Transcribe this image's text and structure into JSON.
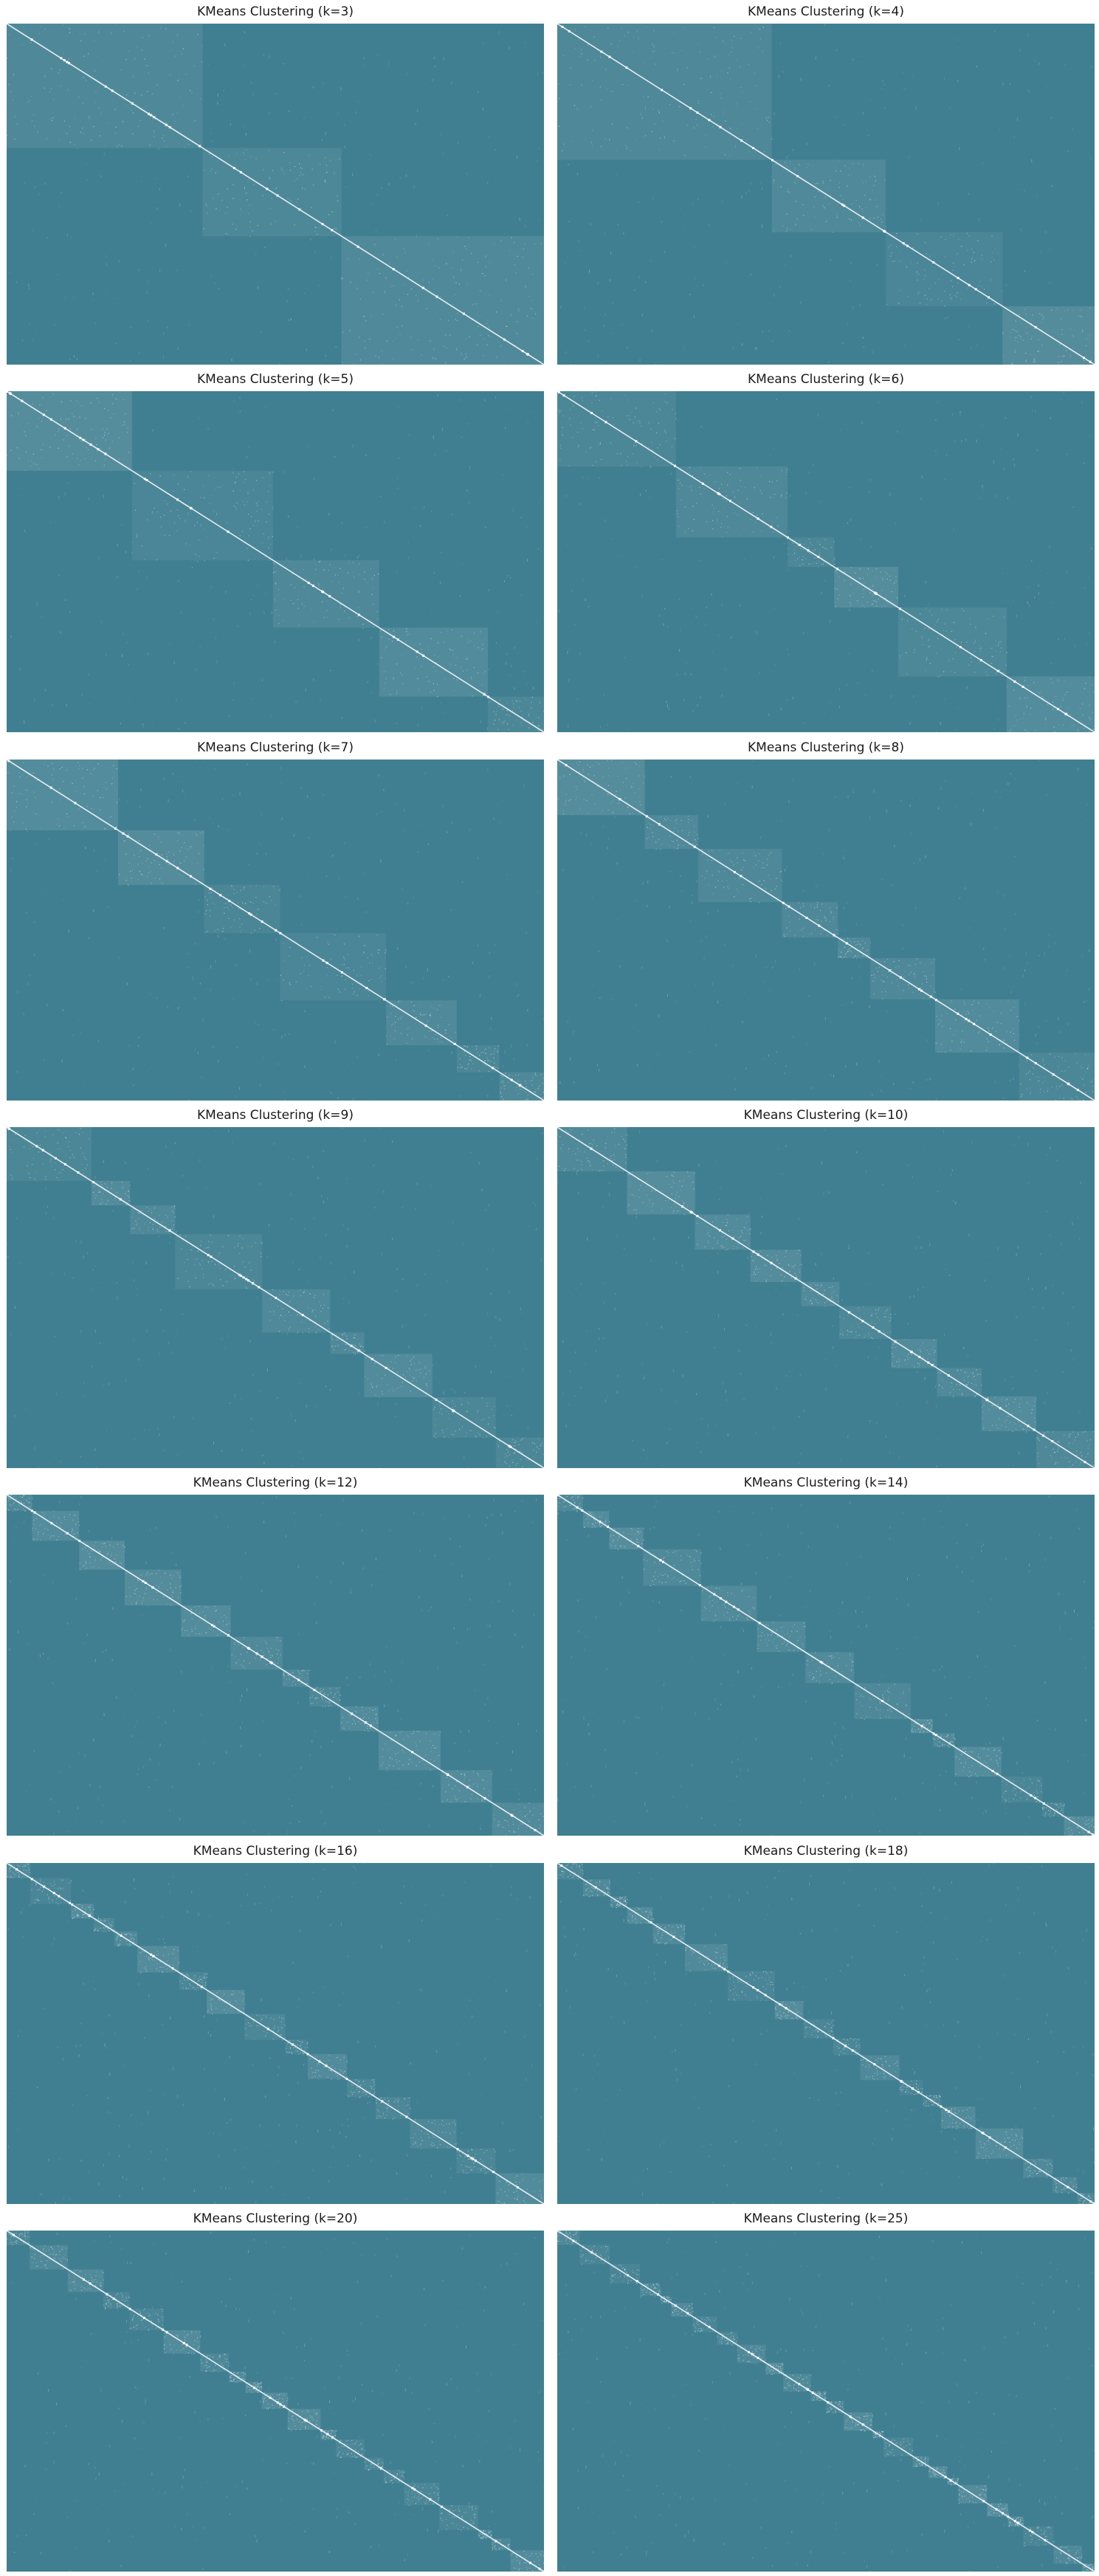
{
  "figure": {
    "background": "#ffffff",
    "cell_color": "#407f91",
    "highlight_color": "#ffffff"
  },
  "chart_data": [
    {
      "type": "heatmap",
      "title": "KMeans Clustering (k=3)",
      "k": 3,
      "xlabel": "",
      "ylabel": "",
      "grid": false,
      "legend": "none"
    },
    {
      "type": "heatmap",
      "title": "KMeans Clustering (k=4)",
      "k": 4,
      "xlabel": "",
      "ylabel": "",
      "grid": false,
      "legend": "none"
    },
    {
      "type": "heatmap",
      "title": "KMeans Clustering (k=5)",
      "k": 5,
      "xlabel": "",
      "ylabel": "",
      "grid": false,
      "legend": "none"
    },
    {
      "type": "heatmap",
      "title": "KMeans Clustering (k=6)",
      "k": 6,
      "xlabel": "",
      "ylabel": "",
      "grid": false,
      "legend": "none"
    },
    {
      "type": "heatmap",
      "title": "KMeans Clustering (k=7)",
      "k": 7,
      "xlabel": "",
      "ylabel": "",
      "grid": false,
      "legend": "none"
    },
    {
      "type": "heatmap",
      "title": "KMeans Clustering (k=8)",
      "k": 8,
      "xlabel": "",
      "ylabel": "",
      "grid": false,
      "legend": "none"
    },
    {
      "type": "heatmap",
      "title": "KMeans Clustering (k=9)",
      "k": 9,
      "xlabel": "",
      "ylabel": "",
      "grid": false,
      "legend": "none"
    },
    {
      "type": "heatmap",
      "title": "KMeans Clustering (k=10)",
      "k": 10,
      "xlabel": "",
      "ylabel": "",
      "grid": false,
      "legend": "none"
    },
    {
      "type": "heatmap",
      "title": "KMeans Clustering (k=12)",
      "k": 12,
      "xlabel": "",
      "ylabel": "",
      "grid": false,
      "legend": "none"
    },
    {
      "type": "heatmap",
      "title": "KMeans Clustering (k=14)",
      "k": 14,
      "xlabel": "",
      "ylabel": "",
      "grid": false,
      "legend": "none"
    },
    {
      "type": "heatmap",
      "title": "KMeans Clustering (k=16)",
      "k": 16,
      "xlabel": "",
      "ylabel": "",
      "grid": false,
      "legend": "none"
    },
    {
      "type": "heatmap",
      "title": "KMeans Clustering (k=18)",
      "k": 18,
      "xlabel": "",
      "ylabel": "",
      "grid": false,
      "legend": "none"
    },
    {
      "type": "heatmap",
      "title": "KMeans Clustering (k=20)",
      "k": 20,
      "xlabel": "",
      "ylabel": "",
      "grid": false,
      "legend": "none"
    },
    {
      "type": "heatmap",
      "title": "KMeans Clustering (k=25)",
      "k": 25,
      "xlabel": "",
      "ylabel": "",
      "grid": false,
      "legend": "none"
    }
  ]
}
